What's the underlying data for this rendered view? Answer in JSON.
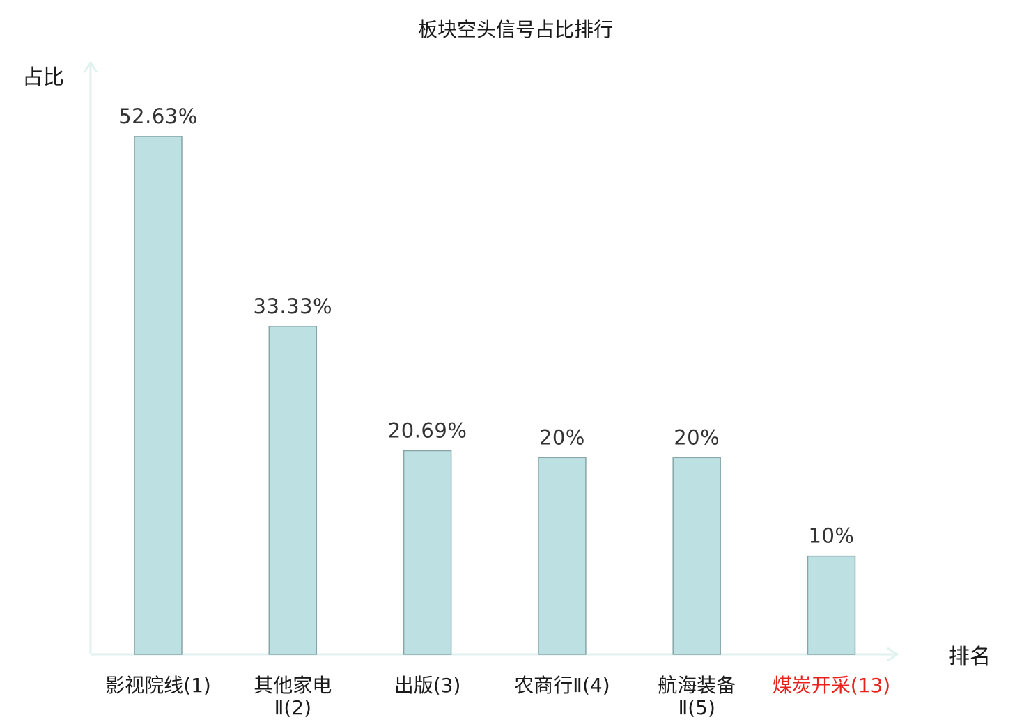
{
  "chart_data": {
    "type": "bar",
    "title": "板块空头信号占比排行",
    "ylabel": "占比",
    "xlabel": "排名",
    "ylim": [
      0,
      60
    ],
    "grid": false,
    "categories": [
      {
        "lines": [
          "影视院线(1)"
        ],
        "highlight": false
      },
      {
        "lines": [
          "其他家电",
          "Ⅱ(2)"
        ],
        "highlight": false
      },
      {
        "lines": [
          "出版(3)"
        ],
        "highlight": false
      },
      {
        "lines": [
          "农商行Ⅱ(4)"
        ],
        "highlight": false
      },
      {
        "lines": [
          "航海装备",
          "Ⅱ(5)"
        ],
        "highlight": false
      },
      {
        "lines": [
          "煤炭开采(13)"
        ],
        "highlight": true
      }
    ],
    "values": [
      52.63,
      33.33,
      20.69,
      20,
      20,
      10
    ],
    "value_labels": [
      "52.63%",
      "33.33%",
      "20.69%",
      "20%",
      "20%",
      "10%"
    ]
  },
  "colors": {
    "bar_fill": "#bde0e2",
    "bar_stroke": "#86a5a8",
    "axis": "#dff2ef",
    "text": "#1a1a1a",
    "value_text": "#333333",
    "highlight": "#e8221b"
  }
}
